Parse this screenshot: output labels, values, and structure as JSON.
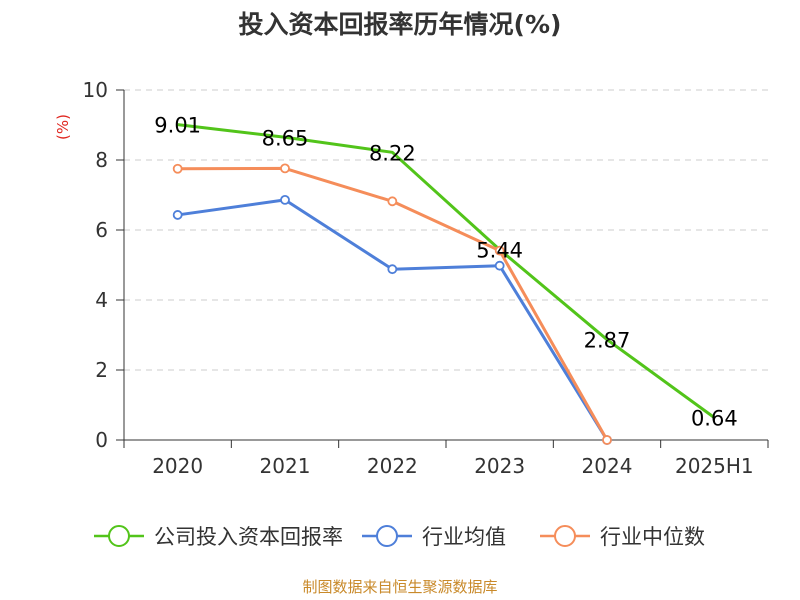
{
  "chart_data": {
    "type": "line",
    "title": "投入资本回报率历年情况(%)",
    "ylabel": "(%)",
    "categories": [
      "2020",
      "2021",
      "2022",
      "2023",
      "2024",
      "2025H1"
    ],
    "ylim": [
      0,
      10
    ],
    "yticks": [
      "0",
      "2",
      "4",
      "6",
      "8",
      "10"
    ],
    "grid": true,
    "legend_position": "bottom",
    "series": [
      {
        "name": "公司投入资本回报率",
        "color": "#52c41a",
        "values": [
          9.01,
          8.65,
          8.22,
          5.44,
          2.87,
          0.64
        ],
        "labels": [
          "9.01",
          "8.65",
          "8.22",
          "5.44",
          "2.87",
          "0.64"
        ]
      },
      {
        "name": "行业均值",
        "color": "#4e7fd9",
        "values": [
          6.43,
          6.86,
          4.88,
          4.98,
          0.0,
          null
        ]
      },
      {
        "name": "行业中位数",
        "color": "#f58d5a",
        "values": [
          7.75,
          7.76,
          6.82,
          5.41,
          0.0,
          null
        ]
      }
    ]
  },
  "source_text": "制图数据来自恒生聚源数据库"
}
